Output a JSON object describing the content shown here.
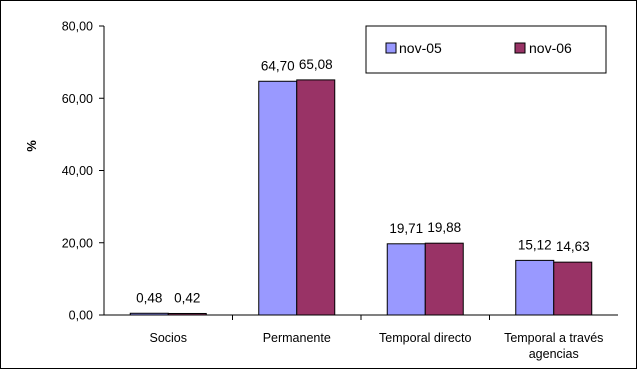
{
  "chart_data": {
    "type": "bar",
    "ylabel": "%",
    "ylim": [
      0,
      80
    ],
    "yticks": [
      "0,00",
      "20,00",
      "40,00",
      "60,00",
      "80,00"
    ],
    "categories": [
      "Socios",
      "Permanente",
      "Temporal directo",
      "Temporal a través agencias"
    ],
    "series": [
      {
        "name": "nov-05",
        "color": "#9999ff",
        "values": [
          0.48,
          64.7,
          19.71,
          15.12
        ],
        "labels": [
          "0,48",
          "64,70",
          "19,71",
          "15,12"
        ]
      },
      {
        "name": "nov-06",
        "color": "#993366",
        "values": [
          0.42,
          65.08,
          19.88,
          14.63
        ],
        "labels": [
          "0,42",
          "65,08",
          "19,88",
          "14,63"
        ]
      }
    ],
    "legend_position": "top-right",
    "grid": false
  }
}
